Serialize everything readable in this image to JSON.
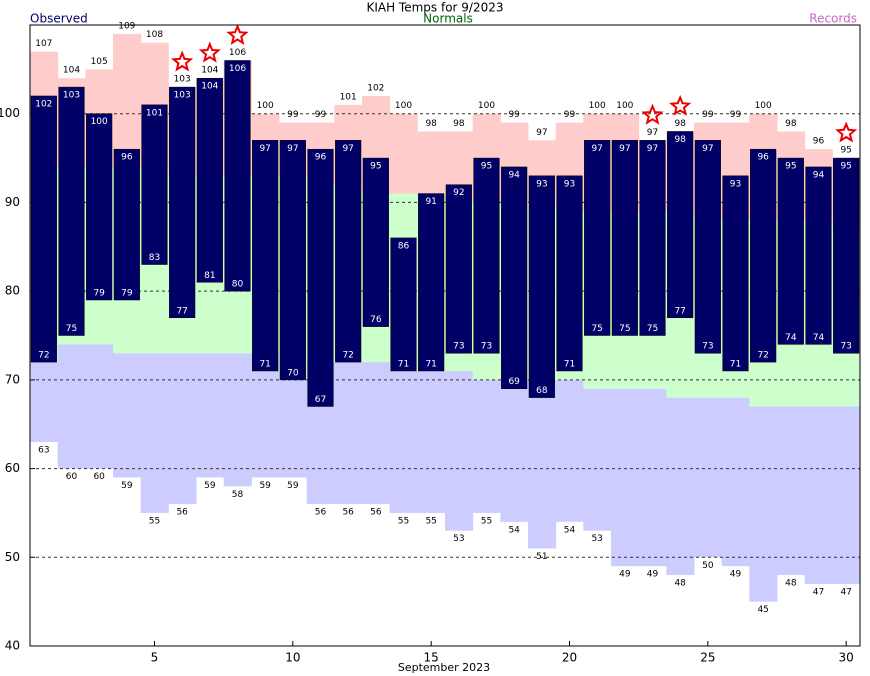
{
  "chart_data": {
    "type": "bar",
    "title": "KIAH Temps for 9/2023",
    "xlabel": "September 2023",
    "x": [
      1,
      2,
      3,
      4,
      5,
      6,
      7,
      8,
      9,
      10,
      11,
      12,
      13,
      14,
      15,
      16,
      17,
      18,
      19,
      20,
      21,
      22,
      23,
      24,
      25,
      26,
      27,
      28,
      29,
      30
    ],
    "xlim": [
      0.5,
      30.5
    ],
    "xticks": [
      5,
      10,
      15,
      20,
      25,
      30
    ],
    "ylim": [
      40,
      110
    ],
    "yticks": [
      40,
      50,
      60,
      70,
      80,
      90,
      100
    ],
    "grid": true,
    "series": [
      {
        "name": "Observed",
        "color": "#000066",
        "high": [
          102,
          103,
          100,
          96,
          101,
          103,
          104,
          106,
          97,
          97,
          96,
          97,
          95,
          86,
          91,
          92,
          95,
          94,
          93,
          93,
          97,
          97,
          97,
          98,
          97,
          93,
          96,
          95,
          94,
          95
        ],
        "low": [
          72,
          75,
          79,
          79,
          83,
          77,
          81,
          80,
          71,
          70,
          67,
          72,
          76,
          71,
          71,
          73,
          73,
          69,
          68,
          71,
          75,
          75,
          75,
          77,
          73,
          71,
          72,
          74,
          74,
          73
        ]
      },
      {
        "name": "Normals",
        "color": "#006600",
        "fill": "#ccffcc",
        "high": [
          94,
          94,
          94,
          94,
          94,
          93,
          93,
          93,
          93,
          93,
          92,
          92,
          91,
          91,
          91,
          90,
          90,
          90,
          90,
          89,
          89,
          89,
          89,
          89,
          88,
          88,
          88,
          88,
          88,
          87
        ],
        "low": [
          72,
          74,
          74,
          73,
          73,
          73,
          73,
          73,
          73,
          70,
          72,
          72,
          72,
          71,
          71,
          71,
          70,
          70,
          70,
          70,
          69,
          69,
          69,
          68,
          68,
          68,
          67,
          67,
          67,
          67
        ]
      },
      {
        "name": "Records",
        "color": "#cc66cc",
        "fill_high": "#ffcccc",
        "fill_low": "#ccccff",
        "high": [
          107,
          104,
          105,
          109,
          108,
          103,
          104,
          106,
          100,
          99,
          99,
          101,
          102,
          100,
          98,
          98,
          100,
          99,
          97,
          99,
          100,
          100,
          97,
          98,
          99,
          99,
          100,
          98,
          96,
          95
        ],
        "low": [
          63,
          60,
          60,
          59,
          55,
          56,
          59,
          58,
          59,
          59,
          56,
          56,
          56,
          55,
          55,
          53,
          55,
          54,
          51,
          54,
          53,
          49,
          49,
          48,
          50,
          49,
          45,
          48,
          47,
          47
        ]
      }
    ]
  }
}
